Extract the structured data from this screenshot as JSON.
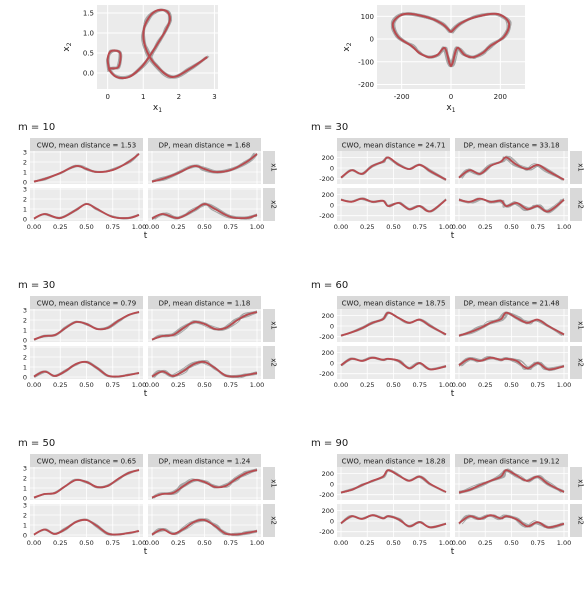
{
  "figure": {
    "top_plots": [
      {
        "id": "spiral",
        "xlabel": "x",
        "xlabel_sub": "1",
        "ylabel": "x",
        "ylabel_sub": "2",
        "x_ticks": [
          "0",
          "1",
          "2",
          "3"
        ],
        "y_ticks": [
          "0.0",
          "0.5",
          "1.0",
          "1.5"
        ]
      },
      {
        "id": "butterfly",
        "xlabel": "x",
        "xlabel_sub": "1",
        "ylabel": "x",
        "ylabel_sub": "2",
        "x_ticks": [
          "-200",
          "0",
          "200"
        ],
        "y_ticks": [
          "-200",
          "-100",
          "0",
          "100"
        ]
      }
    ],
    "panel_groups": [
      {
        "id": "left-m10",
        "title": "m = 10",
        "shape": "spiral",
        "facets": [
          "CWO, mean distance = 1.53",
          "DP, mean distance = 1.68"
        ],
        "strips": [
          "x1",
          "x2"
        ]
      },
      {
        "id": "right-m30",
        "title": "m = 30",
        "shape": "butterfly",
        "facets": [
          "CWO, mean distance = 24.71",
          "DP, mean distance = 33.18"
        ],
        "strips": [
          "x1",
          "x2"
        ]
      },
      {
        "id": "left-m30",
        "title": "m = 30",
        "shape": "spiral",
        "facets": [
          "CWO, mean distance = 0.79",
          "DP, mean distance = 1.18"
        ],
        "strips": [
          "x1",
          "x2"
        ]
      },
      {
        "id": "right-m60",
        "title": "m = 60",
        "shape": "butterfly",
        "facets": [
          "CWO, mean distance = 18.75",
          "DP, mean distance = 21.48"
        ],
        "strips": [
          "x1",
          "x2"
        ]
      },
      {
        "id": "left-m50",
        "title": "m = 50",
        "shape": "spiral",
        "facets": [
          "CWO, mean distance = 0.65",
          "DP, mean distance = 1.24"
        ],
        "strips": [
          "x1",
          "x2"
        ]
      },
      {
        "id": "right-m90",
        "title": "m = 90",
        "shape": "butterfly",
        "facets": [
          "CWO, mean distance = 18.28",
          "DP, mean distance = 19.12"
        ],
        "strips": [
          "x1",
          "x2"
        ]
      }
    ],
    "spiral_axes": {
      "x_ticks": [
        "0.00",
        "0.25",
        "0.50",
        "0.75",
        "1.00"
      ],
      "y_ticks_x1": [
        "0",
        "1",
        "2",
        "3"
      ],
      "y_ticks_x2": [
        "0",
        "1",
        "2",
        "3"
      ],
      "xlabel": "t"
    },
    "butterfly_axes": {
      "x_ticks": [
        "0.00",
        "0.25",
        "0.50",
        "0.75",
        "1.00"
      ],
      "y_ticks_x1": [
        "200",
        "0",
        "-200"
      ],
      "y_ticks_x2": [
        "200",
        "0",
        "-200"
      ],
      "xlabel": "t"
    }
  },
  "chart_data": [
    {
      "type": "line",
      "title": "",
      "xlabel": "x1",
      "ylabel": "x2",
      "xlim": [
        -0.3,
        3.1
      ],
      "ylim": [
        -0.4,
        1.7
      ],
      "series": [
        {
          "name": "",
          "color": "#b84a4f",
          "x": [
            0.05,
            0.0,
            0.1,
            0.35,
            0.3,
            0.05,
            0.25,
            0.6,
            0.95,
            1.2,
            1.45,
            1.65,
            1.75,
            1.65,
            1.35,
            1.1,
            1.0,
            1.1,
            1.35,
            1.8,
            2.3,
            2.8
          ],
          "y": [
            0.05,
            0.35,
            0.55,
            0.5,
            0.15,
            0.1,
            -0.1,
            -0.1,
            0.15,
            0.45,
            0.8,
            1.1,
            1.35,
            1.55,
            1.55,
            1.3,
            0.95,
            0.55,
            0.2,
            -0.1,
            0.1,
            0.4
          ]
        }
      ]
    },
    {
      "type": "line",
      "title": "",
      "xlabel": "x1",
      "ylabel": "x2",
      "xlim": [
        -300,
        300
      ],
      "ylim": [
        -220,
        150
      ],
      "series": [
        {
          "name": "",
          "color": "#b84a4f",
          "x": [
            0,
            -40,
            -110,
            -190,
            -235,
            -215,
            -160,
            -130,
            -90,
            -55,
            -25,
            -5,
            5,
            25,
            55,
            90,
            130,
            160,
            215,
            235,
            190,
            110,
            40,
            0
          ],
          "y": [
            30,
            70,
            100,
            110,
            70,
            10,
            -30,
            -60,
            -80,
            -70,
            -40,
            -110,
            -110,
            -40,
            -70,
            -80,
            -60,
            -30,
            10,
            70,
            110,
            100,
            70,
            30
          ]
        }
      ]
    },
    {
      "type": "line",
      "title": "m = 10",
      "xlabel": "t",
      "facets": [
        "CWO, mean distance = 1.53",
        "DP, mean distance = 1.68"
      ],
      "strips": [
        "x1",
        "x2"
      ],
      "x": [
        0.0,
        0.1,
        0.25,
        0.4,
        0.5,
        0.6,
        0.75,
        0.9,
        1.0
      ],
      "series": [
        {
          "name": "x1",
          "values": [
            0.05,
            0.3,
            0.9,
            1.6,
            1.3,
            1.0,
            1.2,
            2.0,
            2.8
          ]
        },
        {
          "name": "x2",
          "values": [
            0.05,
            0.5,
            0.1,
            0.9,
            1.5,
            1.0,
            0.2,
            0.1,
            0.4
          ]
        }
      ]
    },
    {
      "type": "line",
      "title": "m = 30",
      "xlabel": "t",
      "facets": [
        "CWO, mean distance = 24.71",
        "DP, mean distance = 33.18"
      ],
      "strips": [
        "x1",
        "x2"
      ],
      "x": [
        0.0,
        0.1,
        0.2,
        0.3,
        0.4,
        0.45,
        0.55,
        0.65,
        0.75,
        0.85,
        1.0
      ],
      "series": [
        {
          "name": "x1",
          "values": [
            -180,
            -40,
            -110,
            40,
            120,
            200,
            60,
            -20,
            60,
            -60,
            -220
          ]
        },
        {
          "name": "x2",
          "values": [
            100,
            60,
            120,
            60,
            80,
            -20,
            40,
            -80,
            -20,
            -120,
            100
          ]
        }
      ]
    },
    {
      "type": "line",
      "title": "m = 30",
      "xlabel": "t",
      "facets": [
        "CWO, mean distance = 0.79",
        "DP, mean distance = 1.18"
      ],
      "strips": [
        "x1",
        "x2"
      ],
      "x": [
        0.0,
        0.1,
        0.2,
        0.3,
        0.4,
        0.5,
        0.6,
        0.7,
        0.8,
        0.9,
        1.0
      ],
      "series": [
        {
          "name": "x1",
          "values": [
            0.05,
            0.4,
            0.5,
            1.2,
            1.8,
            1.6,
            1.1,
            1.2,
            1.9,
            2.5,
            2.8
          ]
        },
        {
          "name": "x2",
          "values": [
            0.05,
            0.55,
            0.1,
            0.6,
            1.3,
            1.5,
            0.9,
            0.15,
            0.05,
            0.2,
            0.4
          ]
        }
      ]
    },
    {
      "type": "line",
      "title": "m = 60",
      "xlabel": "t",
      "facets": [
        "CWO, mean distance = 18.75",
        "DP, mean distance = 21.48"
      ],
      "strips": [
        "x1",
        "x2"
      ],
      "x": [
        0.0,
        0.1,
        0.2,
        0.3,
        0.4,
        0.45,
        0.55,
        0.65,
        0.75,
        0.85,
        1.0
      ],
      "series": [
        {
          "name": "x1",
          "values": [
            -180,
            -120,
            -40,
            60,
            130,
            250,
            150,
            60,
            120,
            0,
            -160
          ]
        },
        {
          "name": "x2",
          "values": [
            -40,
            80,
            40,
            100,
            60,
            80,
            40,
            -100,
            0,
            -120,
            -60
          ]
        }
      ]
    },
    {
      "type": "line",
      "title": "m = 50",
      "xlabel": "t",
      "facets": [
        "CWO, mean distance = 0.65",
        "DP, mean distance = 1.24"
      ],
      "strips": [
        "x1",
        "x2"
      ],
      "x": [
        0.0,
        0.1,
        0.2,
        0.3,
        0.4,
        0.5,
        0.6,
        0.7,
        0.8,
        0.9,
        1.0
      ],
      "series": [
        {
          "name": "x1",
          "values": [
            0.05,
            0.4,
            0.5,
            1.2,
            1.8,
            1.6,
            1.1,
            1.2,
            1.9,
            2.5,
            2.8
          ]
        },
        {
          "name": "x2",
          "values": [
            0.05,
            0.55,
            0.1,
            0.6,
            1.3,
            1.5,
            0.9,
            0.15,
            0.05,
            0.2,
            0.4
          ]
        }
      ]
    },
    {
      "type": "line",
      "title": "m = 90",
      "xlabel": "t",
      "facets": [
        "CWO, mean distance = 18.28",
        "DP, mean distance = 19.12"
      ],
      "strips": [
        "x1",
        "x2"
      ],
      "x": [
        0.0,
        0.1,
        0.2,
        0.3,
        0.4,
        0.45,
        0.55,
        0.65,
        0.75,
        0.85,
        1.0
      ],
      "series": [
        {
          "name": "x1",
          "values": [
            -160,
            -110,
            -20,
            60,
            140,
            260,
            160,
            60,
            140,
            0,
            -150
          ]
        },
        {
          "name": "x2",
          "values": [
            -40,
            90,
            40,
            110,
            50,
            90,
            30,
            -100,
            -20,
            -120,
            -50
          ]
        }
      ]
    }
  ]
}
